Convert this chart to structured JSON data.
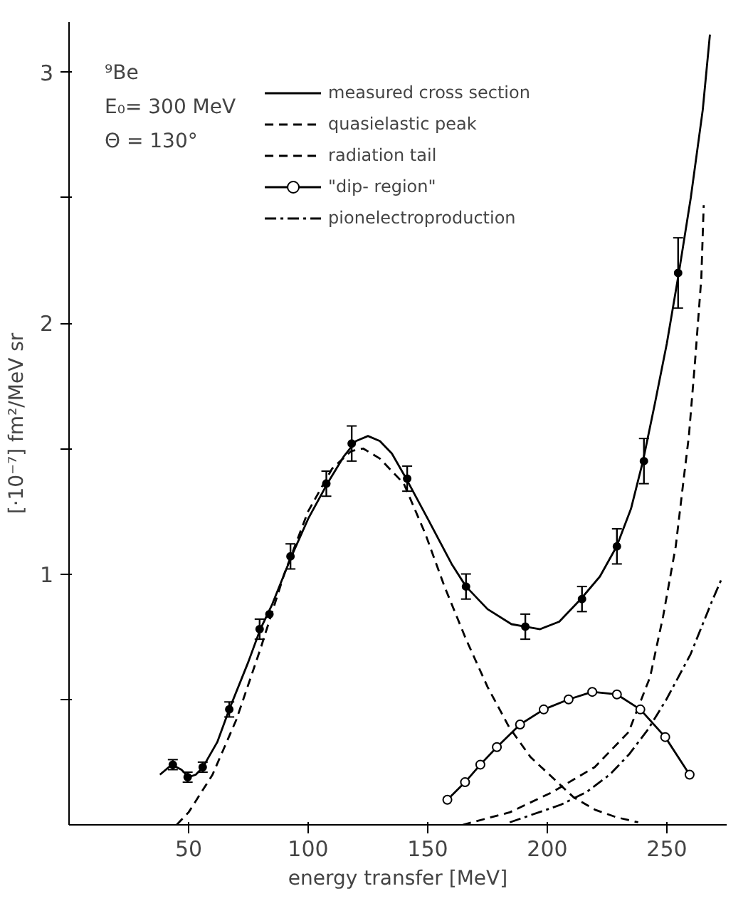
{
  "chart_data": {
    "type": "line",
    "xlabel": "energy transfer [MeV]",
    "ylabel": "[·10⁻⁷] fm²/MeV sr",
    "annotations": [
      "⁹Be",
      "E₀= 300 MeV",
      "Θ = 130°"
    ],
    "xlim": [
      0,
      275
    ],
    "ylim": [
      0,
      3.2
    ],
    "xticks": [
      50,
      100,
      150,
      200,
      250
    ],
    "yticks": [
      {
        "value": 0.5,
        "label": null
      },
      1,
      {
        "value": 1.5,
        "label": null
      },
      2,
      {
        "value": 2.5,
        "label": null
      },
      3
    ],
    "grid": false,
    "legend": "top",
    "series": [
      {
        "name": "measured cross section",
        "line_style": "solid",
        "marker": "none",
        "color": "#000000",
        "x": [
          38,
          43,
          47,
          50,
          53,
          56,
          62,
          67,
          75,
          80,
          85,
          93,
          100,
          108,
          115,
          120,
          125,
          130,
          135,
          141,
          150,
          160,
          166,
          175,
          185,
          191,
          197,
          205,
          214,
          222,
          229,
          235,
          240,
          245,
          250,
          255,
          260,
          265,
          268
        ],
        "values": [
          0.2,
          0.24,
          0.22,
          0.19,
          0.2,
          0.23,
          0.33,
          0.46,
          0.65,
          0.78,
          0.88,
          1.07,
          1.22,
          1.36,
          1.47,
          1.53,
          1.55,
          1.53,
          1.48,
          1.38,
          1.22,
          1.04,
          0.95,
          0.86,
          0.8,
          0.79,
          0.78,
          0.81,
          0.9,
          0.99,
          1.11,
          1.26,
          1.45,
          1.68,
          1.92,
          2.2,
          2.5,
          2.85,
          3.15
        ]
      },
      {
        "name": "quasielastic peak",
        "line_style": "dashed",
        "marker": "none",
        "color": "#000000",
        "x": [
          45,
          50,
          60,
          70,
          80,
          90,
          100,
          110,
          118,
          123,
          130,
          140,
          149,
          157,
          166,
          175,
          184,
          193,
          202,
          211,
          220,
          229,
          238
        ],
        "values": [
          0,
          0.05,
          0.2,
          0.42,
          0.7,
          1.0,
          1.25,
          1.42,
          1.49,
          1.5,
          1.46,
          1.36,
          1.16,
          0.95,
          0.74,
          0.55,
          0.39,
          0.27,
          0.19,
          0.11,
          0.06,
          0.03,
          0.01
        ]
      },
      {
        "name": "radiation tail",
        "line_style": "dashed",
        "marker": "none",
        "color": "#000000",
        "x": [
          164.6,
          184.3,
          202,
          219.8,
          234,
          243,
          248.4,
          253.7,
          257.3,
          259.2,
          261.8,
          264.4,
          265.4
        ],
        "values": [
          0,
          0.05,
          0.13,
          0.23,
          0.37,
          0.59,
          0.83,
          1.11,
          1.4,
          1.55,
          1.85,
          2.18,
          2.47
        ]
      },
      {
        "name": "\"dip- region\"",
        "line_style": "solid",
        "marker": "circle",
        "color": "#000000",
        "x": [
          158.2,
          165.6,
          172,
          178.9,
          188.6,
          198.5,
          208.9,
          218.8,
          229.1,
          238.9,
          249.3,
          259.5
        ],
        "values": [
          0.1,
          0.17,
          0.24,
          0.31,
          0.4,
          0.46,
          0.5,
          0.53,
          0.52,
          0.46,
          0.35,
          0.2
        ]
      },
      {
        "name": "pionelectroproduction",
        "line_style": "dashdot",
        "marker": "none",
        "color": "#000000",
        "x": [
          184.3,
          205.6,
          216.3,
          226.1,
          234.1,
          242.1,
          249.8,
          259.9,
          268.8,
          273.3
        ],
        "values": [
          0.01,
          0.08,
          0.13,
          0.2,
          0.28,
          0.38,
          0.5,
          0.68,
          0.89,
          0.99
        ]
      },
      {
        "type": "scatter",
        "marker": "circle",
        "color": "#000000",
        "x": [
          43.4,
          49.6,
          55.9,
          67,
          79.7,
          83.8,
          92.6,
          107.6,
          118.2,
          141.4,
          166,
          190.8,
          214.5,
          229.1,
          240.4,
          254.7
        ],
        "values": [
          0.24,
          0.19,
          0.23,
          0.46,
          0.78,
          0.84,
          1.07,
          1.36,
          1.52,
          1.38,
          0.95,
          0.79,
          0.9,
          1.11,
          1.45,
          2.2
        ],
        "errors": [
          0.02,
          0.02,
          0.02,
          0.03,
          0.04,
          null,
          0.05,
          0.05,
          0.07,
          0.05,
          0.05,
          0.05,
          0.05,
          0.07,
          0.09,
          0.14
        ]
      }
    ]
  }
}
